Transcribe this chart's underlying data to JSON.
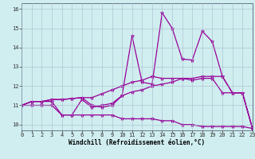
{
  "title": "",
  "xlabel": "Windchill (Refroidissement éolien,°C)",
  "background_color": "#d0eef0",
  "grid_color": "#aabbcc",
  "line_color": "#990099",
  "x": [
    0,
    1,
    2,
    3,
    4,
    5,
    6,
    7,
    8,
    9,
    10,
    11,
    12,
    13,
    14,
    15,
    16,
    17,
    18,
    19,
    20,
    21,
    22,
    23
  ],
  "line1": [
    11.0,
    11.2,
    11.2,
    11.3,
    11.3,
    11.35,
    11.4,
    11.4,
    11.6,
    11.8,
    12.0,
    12.2,
    12.3,
    12.5,
    12.4,
    12.4,
    12.4,
    12.4,
    12.5,
    12.5,
    12.5,
    11.65,
    11.65,
    9.8
  ],
  "line2": [
    11.0,
    11.2,
    11.2,
    11.2,
    10.5,
    10.5,
    11.3,
    10.9,
    11.0,
    11.1,
    11.5,
    14.6,
    12.2,
    12.1,
    15.8,
    15.0,
    13.4,
    13.35,
    14.85,
    14.3,
    12.5,
    11.65,
    11.65,
    9.8
  ],
  "line3": [
    11.0,
    11.2,
    11.2,
    11.3,
    11.3,
    11.35,
    11.4,
    11.0,
    10.9,
    11.0,
    11.5,
    11.7,
    11.8,
    12.0,
    12.1,
    12.2,
    12.4,
    12.3,
    12.4,
    12.4,
    11.65,
    11.65,
    11.65,
    9.8
  ],
  "line4": [
    11.0,
    11.0,
    11.0,
    11.0,
    10.5,
    10.5,
    10.5,
    10.5,
    10.5,
    10.5,
    10.3,
    10.3,
    10.3,
    10.3,
    10.2,
    10.2,
    10.0,
    10.0,
    9.9,
    9.9,
    9.9,
    9.9,
    9.9,
    9.8
  ],
  "xlim": [
    0,
    23
  ],
  "ylim": [
    9.7,
    16.3
  ],
  "yticks": [
    10,
    11,
    12,
    13,
    14,
    15,
    16
  ],
  "xticks": [
    0,
    1,
    2,
    3,
    4,
    5,
    6,
    7,
    8,
    9,
    10,
    11,
    12,
    13,
    14,
    15,
    16,
    17,
    18,
    19,
    20,
    21,
    22,
    23
  ],
  "marker": "*",
  "markersize": 3.5,
  "linewidth": 0.9,
  "tick_fontsize": 5,
  "xlabel_fontsize": 5.5
}
